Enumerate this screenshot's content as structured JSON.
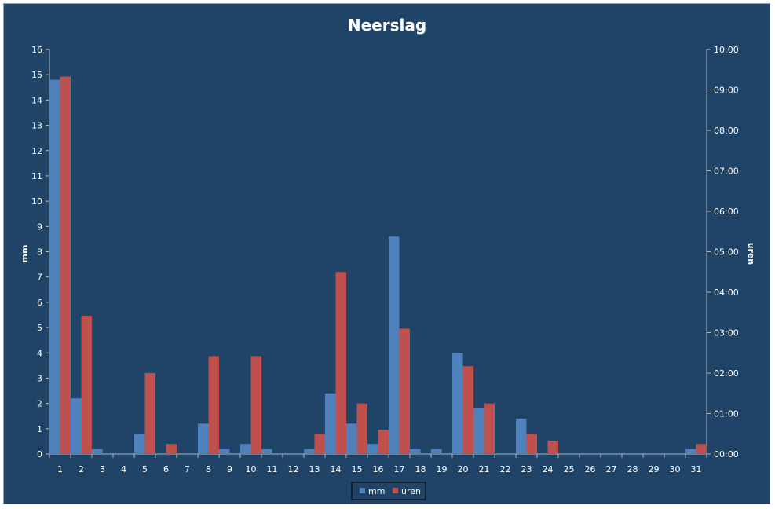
{
  "chart_data": {
    "type": "bar",
    "title": "Neerslag",
    "ylabel": "mm",
    "y2label": "uren",
    "categories": [
      "1",
      "2",
      "3",
      "4",
      "5",
      "6",
      "7",
      "8",
      "9",
      "10",
      "11",
      "12",
      "13",
      "14",
      "15",
      "16",
      "17",
      "18",
      "19",
      "20",
      "21",
      "22",
      "23",
      "24",
      "25",
      "26",
      "27",
      "28",
      "29",
      "30",
      "31"
    ],
    "ylim": [
      0,
      16
    ],
    "yticks": [
      "0",
      "1",
      "2",
      "3",
      "4",
      "5",
      "6",
      "7",
      "8",
      "9",
      "10",
      "11",
      "12",
      "13",
      "14",
      "15",
      "16"
    ],
    "y2lim_hours": [
      0,
      10
    ],
    "y2ticks": [
      "00:00",
      "01:00",
      "02:00",
      "03:00",
      "04:00",
      "05:00",
      "06:00",
      "07:00",
      "08:00",
      "09:00",
      "10:00"
    ],
    "series": [
      {
        "name": "mm",
        "axis": "left",
        "color": "#4f81bd",
        "values": [
          14.8,
          2.2,
          0.2,
          0,
          0.8,
          0,
          0,
          1.2,
          0.2,
          0.4,
          0.2,
          0,
          0.2,
          2.4,
          1.2,
          0.4,
          8.6,
          0.2,
          0.2,
          4.0,
          1.8,
          0,
          1.4,
          0,
          0,
          0,
          0,
          0,
          0,
          0,
          0.2
        ]
      },
      {
        "name": "uren",
        "axis": "right",
        "color": "#c0504d",
        "values": [
          9.33,
          3.42,
          0,
          0,
          2.0,
          0.25,
          0,
          2.42,
          0,
          2.42,
          0,
          0,
          0.5,
          4.5,
          1.25,
          0.6,
          3.1,
          0,
          0,
          2.17,
          1.25,
          0,
          0.5,
          0.33,
          0,
          0,
          0,
          0,
          0,
          0,
          0.25
        ]
      }
    ],
    "grid": false,
    "legend": "bottom"
  },
  "colors": {
    "background": "#1f4467",
    "axis": "#a8b8c8",
    "text": "#ffffff"
  }
}
